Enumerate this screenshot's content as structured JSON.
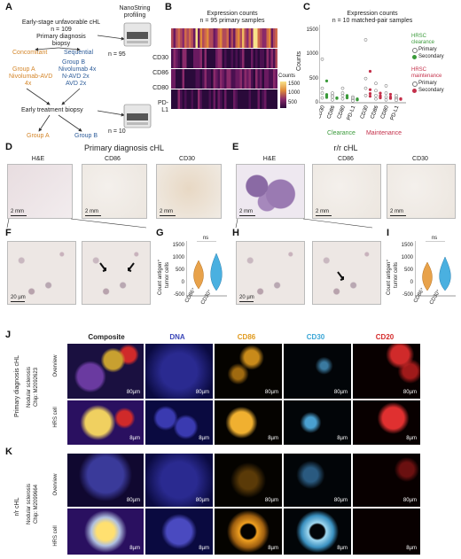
{
  "panels": {
    "A": "A",
    "B": "B",
    "C": "C",
    "D": "D",
    "E": "E",
    "F": "F",
    "G": "G",
    "H": "H",
    "I": "I",
    "J": "J",
    "K": "K"
  },
  "panelA": {
    "top1": "Early-stage unfavorable cHL",
    "top2": "n = 109",
    "top3": "Primary diagnosis",
    "top4": "biopsy",
    "nanostring1": "NanoString",
    "nanostring2": "profiling",
    "n95": "n = 95",
    "concomitant": "Concomitant",
    "sequential": "Sequential",
    "groupA": "Group A",
    "groupA_tx1": "Nivolumab-AVD",
    "groupA_tx2": "4x",
    "groupB": "Group B",
    "groupB_tx1": "Nivolumab 4x",
    "groupB_tx2": "N-AVD 2x",
    "groupB_tx3": "AVD 2x",
    "early1": "Early treatment biopsy",
    "n10": "n = 10",
    "bottomA": "Group A",
    "bottomB": "Group B",
    "colors": {
      "orange": "#d4862a",
      "blue": "#2e5d9a"
    }
  },
  "panelB": {
    "title1": "Expression counts",
    "title2": "n = 95 primary samples",
    "rows": [
      "CD30",
      "CD86",
      "CD80",
      "PD-L1"
    ],
    "legend_title": "Counts",
    "legend_ticks": [
      "1500",
      "1000",
      "500"
    ]
  },
  "panelC": {
    "title1": "Expression counts",
    "title2": "n = 10 matched-pair samples",
    "ylabel": "Counts",
    "yticks": [
      "1500",
      "1000",
      "500",
      "0"
    ],
    "sig": [
      "*",
      "ns",
      "ns",
      "ns",
      "****",
      "ns",
      "ns",
      "ns"
    ],
    "xlabels": [
      "CD30",
      "CD86",
      "CD80",
      "PD-L1",
      "CD30",
      "CD86",
      "CD80",
      "PD-L1"
    ],
    "group1": "Clearance",
    "group2": "Maintenance",
    "legend_clear_title1": "HRSC",
    "legend_clear_title2": "clearance",
    "legend_maint_title1": "HRSC",
    "legend_maint_title2": "maintenance",
    "legend_primary": "Primary",
    "legend_secondary": "Secondary",
    "colors": {
      "clearance": "#3a9a3a",
      "maintenance": "#c4304a"
    }
  },
  "panelD": {
    "title": "Primary diagnosis cHL",
    "labels": [
      "H&E",
      "CD86",
      "CD30"
    ],
    "scale": "2 mm"
  },
  "panelE": {
    "title": "r/r cHL",
    "labels": [
      "H&E",
      "CD86",
      "CD30"
    ],
    "scale": "2 mm"
  },
  "panelF": {
    "scale": "20 µm"
  },
  "panelH": {
    "scale": "20 µm"
  },
  "panelG": {
    "sig": "ns",
    "ylabel1": "Count antigen⁺",
    "ylabel2": "tumor cells",
    "yticks": [
      "1500",
      "1000",
      "500",
      "0",
      "-500"
    ],
    "xlabels": [
      "CD86⁺",
      "CD30⁺"
    ]
  },
  "panelI": {
    "sig": "ns",
    "ylabel1": "Count antigen⁺",
    "ylabel2": "tumor cells",
    "yticks": [
      "1500",
      "1000",
      "500",
      "0",
      "-500"
    ],
    "xlabels": [
      "CD86⁺",
      "CD30⁺"
    ]
  },
  "panelJK": {
    "columns": [
      "Composite",
      "DNA",
      "CD86",
      "CD30",
      "CD20"
    ],
    "column_colors": [
      "#222222",
      "#3a46b8",
      "#e09a1e",
      "#3aa6d6",
      "#d42a2a"
    ],
    "J_side1": "Primary diagnosis cHL",
    "J_side2": "Nodular sclerosis",
    "J_side3": "Chip: M2092623",
    "K_side1": "r/r cHL",
    "K_side2": "Nodular sclerosis",
    "K_side3": "Chip: M2099664",
    "row_overview": "Overview",
    "row_hrs": "HRS cell",
    "scale_overview": "80µm",
    "scale_hrs": "8µm"
  }
}
